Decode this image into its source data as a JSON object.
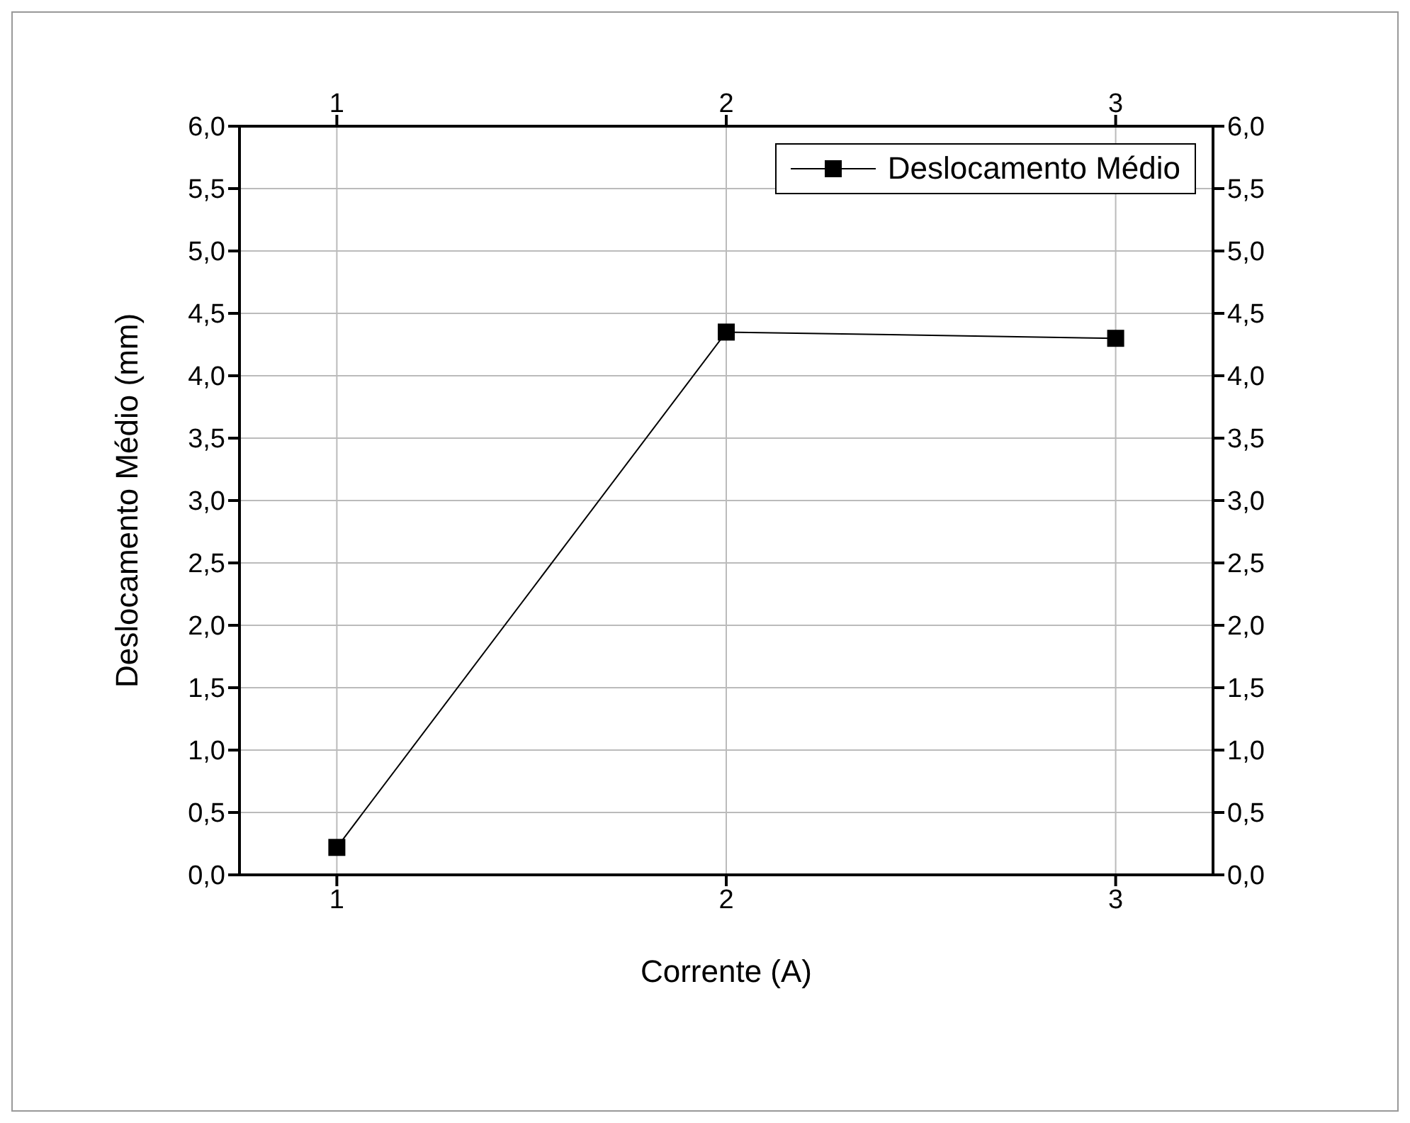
{
  "chart_data": {
    "type": "line",
    "xlabel": "Corrente (A)",
    "ylabel": "Deslocamento Médio (mm)",
    "x": [
      1,
      2,
      3
    ],
    "series": [
      {
        "name": "Deslocamento Médio",
        "color": "#000000",
        "values": [
          0.22,
          4.35,
          4.3
        ]
      }
    ],
    "xlim": [
      0.75,
      3.25
    ],
    "xticks": [
      1,
      2,
      3
    ],
    "x2lim": [
      0.75,
      3.25
    ],
    "x2ticks": [
      1,
      2,
      3
    ],
    "ylim": [
      0,
      6
    ],
    "yticks": [
      {
        "value": 0,
        "label": "0,0"
      },
      {
        "value": 0.5,
        "label": "0,5"
      },
      {
        "value": 1,
        "label": "1,0"
      },
      {
        "value": 1.5,
        "label": "1,5"
      },
      {
        "value": 2,
        "label": "2,0"
      },
      {
        "value": 2.5,
        "label": "2,5"
      },
      {
        "value": 3,
        "label": "3,0"
      },
      {
        "value": 3.5,
        "label": "3,5"
      },
      {
        "value": 4,
        "label": "4,0"
      },
      {
        "value": 4.5,
        "label": "4,5"
      },
      {
        "value": 5,
        "label": "5,0"
      },
      {
        "value": 5.5,
        "label": "5,5"
      },
      {
        "value": 6,
        "label": "6,0"
      }
    ],
    "y2lim": [
      0,
      6
    ],
    "y2ticks": [
      {
        "value": 0,
        "label": "0,0"
      },
      {
        "value": 0.5,
        "label": "0,5"
      },
      {
        "value": 1,
        "label": "1,0"
      },
      {
        "value": 1.5,
        "label": "1,5"
      },
      {
        "value": 2,
        "label": "2,0"
      },
      {
        "value": 2.5,
        "label": "2,5"
      },
      {
        "value": 3,
        "label": "3,0"
      },
      {
        "value": 3.5,
        "label": "3,5"
      },
      {
        "value": 4,
        "label": "4,0"
      },
      {
        "value": 4.5,
        "label": "4,5"
      },
      {
        "value": 5,
        "label": "5,0"
      },
      {
        "value": 5.5,
        "label": "5,5"
      },
      {
        "value": 6,
        "label": "6,0"
      }
    ],
    "grid": true,
    "legend": "top right",
    "marker": "square",
    "line_style": "solid"
  }
}
